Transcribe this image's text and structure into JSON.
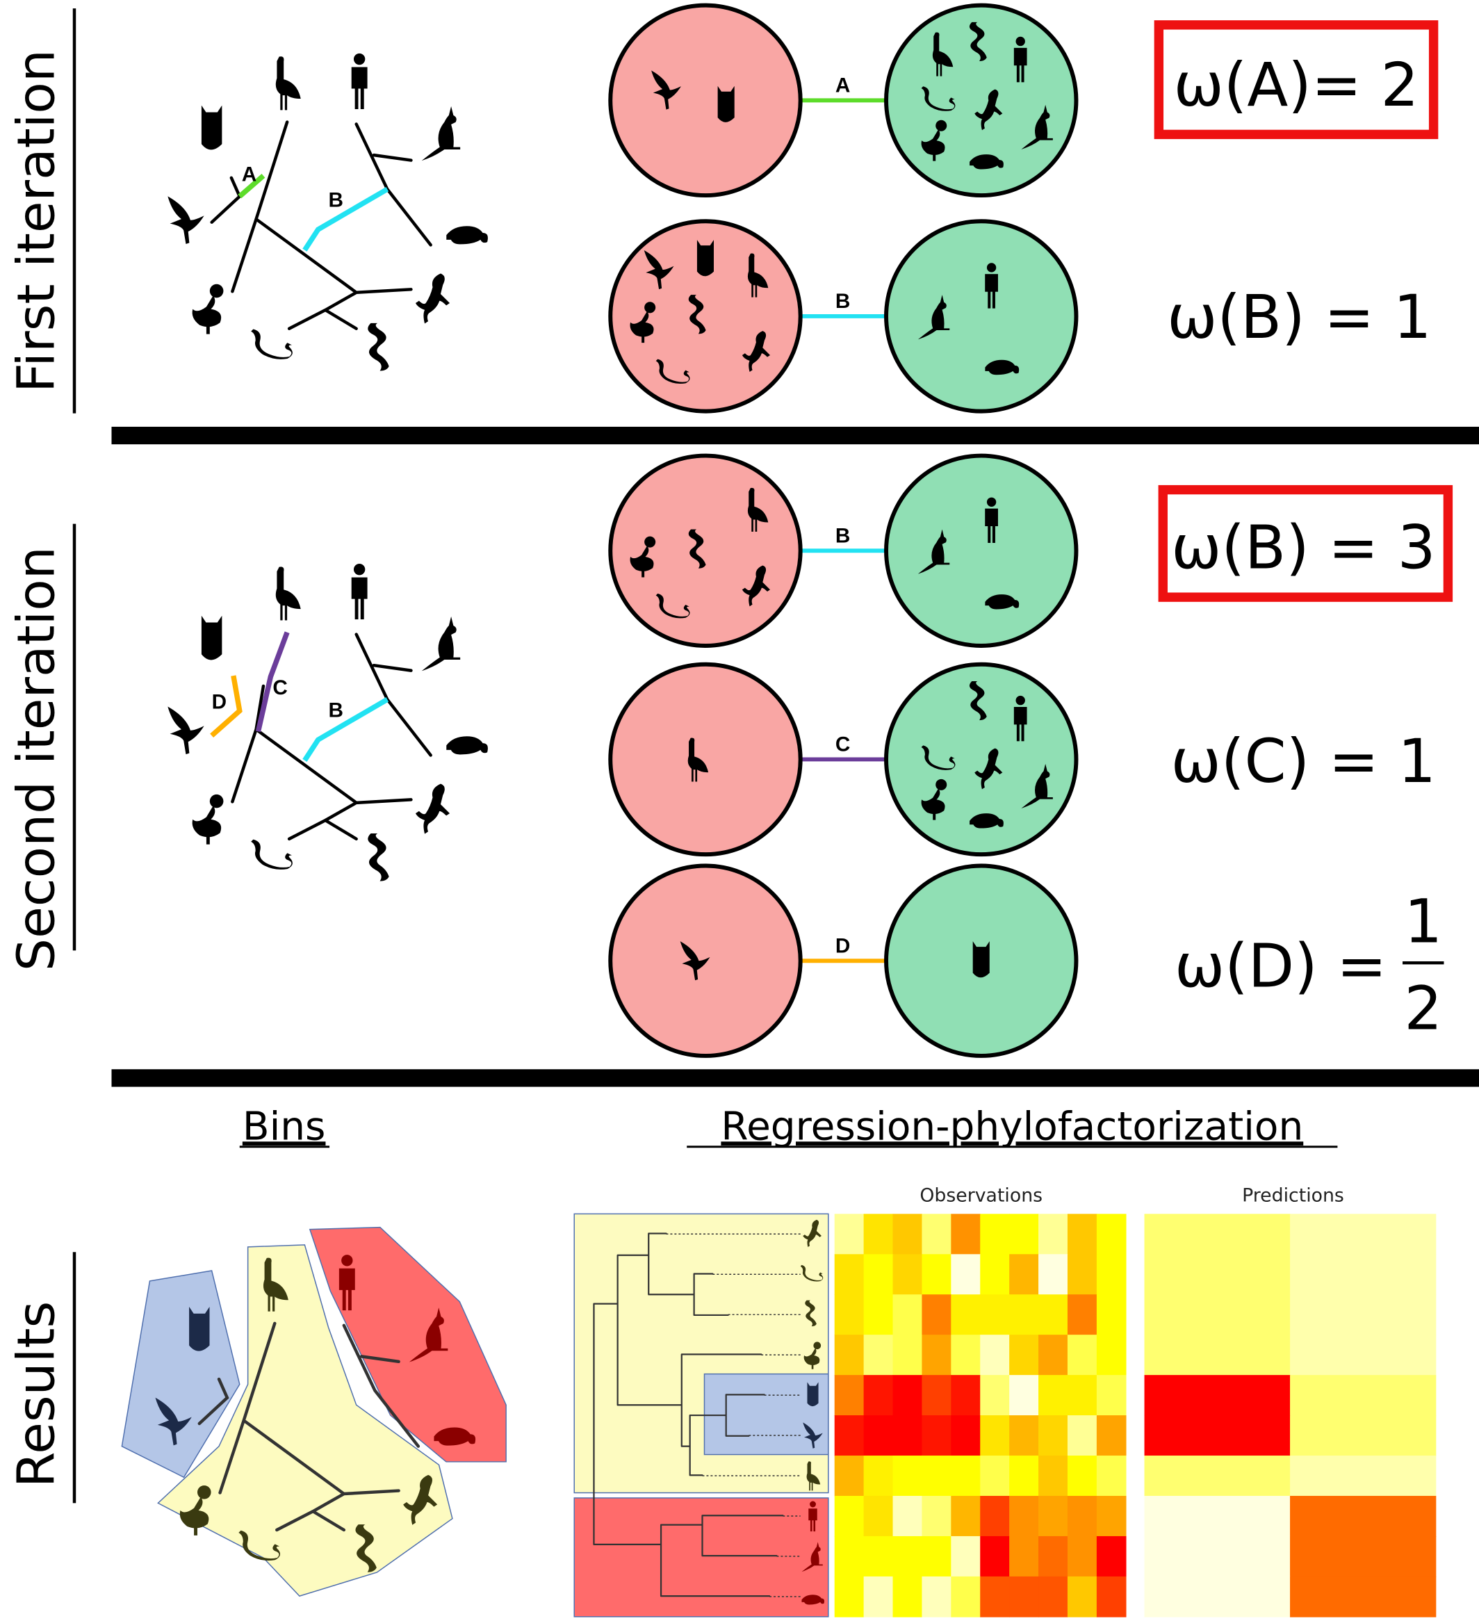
{
  "section_labels": {
    "first": "First iteration",
    "second": "Second iteration",
    "results": "Results"
  },
  "edge_labels": {
    "A": "A",
    "B": "B",
    "C": "C",
    "D": "D"
  },
  "first_iteration": {
    "weights": [
      {
        "text": "ω(A)= 2",
        "highlighted": true
      },
      {
        "text": "ω(B) = 1",
        "highlighted": false
      }
    ]
  },
  "second_iteration": {
    "weights": [
      {
        "text": "ω(B) = 3",
        "highlighted": true
      },
      {
        "text": "ω(C) = 1",
        "highlighted": false
      },
      {
        "text": "ω(D) =",
        "numerator": "1",
        "denominator": "2",
        "highlighted": false
      }
    ]
  },
  "results": {
    "bins_heading": "Bins",
    "regression_heading": "Regression-phylofactorization",
    "observations_label": "Observations",
    "predictions_label": "Predictions"
  },
  "colors": {
    "edge_A": "#5ddc2a",
    "edge_B": "#22e2f2",
    "edge_C": "#6b3d9a",
    "edge_D": "#ffb000",
    "bin_red": "#f9a6a4",
    "bin_green": "#90dfb4",
    "highlight_box": "#ee1111",
    "group_blue": "#b4c6e7",
    "group_yellow": "#fdfbc0",
    "group_red": "#ff6b6b"
  },
  "chart_data": {
    "type": "heatmap",
    "species": [
      "lizard",
      "snake",
      "snake2",
      "dodo",
      "owl",
      "hawk",
      "emu",
      "human",
      "kangaroo",
      "platypus"
    ],
    "observations": [
      [
        0.1,
        0.4,
        0.5,
        0.15,
        0.65,
        0.3,
        0.3,
        0.1,
        0.5,
        0.3
      ],
      [
        0.4,
        0.3,
        0.45,
        0.3,
        0.0,
        0.3,
        0.55,
        0.0,
        0.5,
        0.3
      ],
      [
        0.4,
        0.3,
        0.2,
        0.7,
        0.35,
        0.35,
        0.35,
        0.35,
        0.7,
        0.3
      ],
      [
        0.5,
        0.15,
        0.2,
        0.6,
        0.2,
        0.05,
        0.45,
        0.6,
        0.2,
        0.3
      ],
      [
        0.7,
        0.95,
        1.0,
        0.85,
        0.95,
        0.15,
        0.0,
        0.35,
        0.35,
        0.2
      ],
      [
        0.95,
        1.0,
        1.0,
        0.95,
        1.0,
        0.4,
        0.55,
        0.45,
        0.1,
        0.6
      ],
      [
        0.55,
        0.35,
        0.3,
        0.3,
        0.3,
        0.2,
        0.3,
        0.5,
        0.3,
        0.2
      ],
      [
        0.3,
        0.4,
        0.05,
        0.15,
        0.55,
        0.85,
        0.65,
        0.6,
        0.65,
        0.6
      ],
      [
        0.3,
        0.3,
        0.3,
        0.3,
        0.05,
        1.0,
        0.65,
        0.75,
        0.65,
        1.0
      ],
      [
        0.3,
        0.05,
        0.3,
        0.05,
        0.2,
        0.8,
        0.8,
        0.8,
        0.5,
        0.85
      ]
    ],
    "predictions": [
      [
        0.15,
        0.07
      ],
      [
        0.15,
        0.07
      ],
      [
        0.15,
        0.07
      ],
      [
        0.15,
        0.07
      ],
      [
        1.0,
        0.15
      ],
      [
        1.0,
        0.15
      ],
      [
        0.15,
        0.07
      ],
      [
        0.0,
        0.75
      ],
      [
        0.0,
        0.75
      ],
      [
        0.0,
        0.75
      ]
    ]
  }
}
